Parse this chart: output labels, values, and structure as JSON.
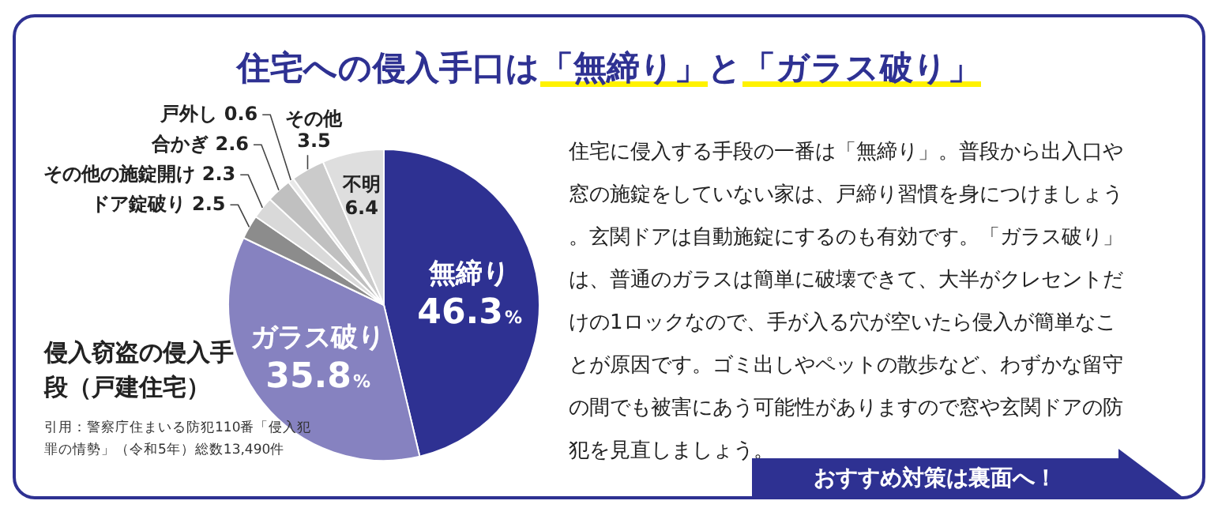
{
  "chart_data": {
    "type": "pie",
    "title": "住宅への侵入手口は「無締り」と「ガラス破り」",
    "subtitle": "侵入窃盗の侵入手段（戸建住宅）",
    "categories": [
      "無締り",
      "ガラス破り",
      "ドア錠破り",
      "その他の施錠開け",
      "合かぎ",
      "戸外し",
      "その他",
      "不明"
    ],
    "values": [
      46.3,
      35.8,
      2.5,
      2.3,
      2.6,
      0.6,
      3.5,
      6.4
    ],
    "colors": [
      "#2e3192",
      "#8682c0",
      "#8c8c8c",
      "#d9d9d9",
      "#c0c0c0",
      "#e8e8e8",
      "#cbcbcb",
      "#dedede"
    ],
    "value_labels": [
      "46.3%",
      "35.8%",
      "2.5",
      "2.3",
      "2.6",
      "0.6",
      "3.5",
      "6.4"
    ],
    "annotations": [
      "引用：警察庁住まいる防犯110番「侵入犯罪の情勢」（令和5年）総数13,490件",
      "住宅に侵入する手段の一番は「無締り」。普段から出入口や窓の施錠をしていない家は、戸締り習慣を身につけましょう。玄関ドアは自動施錠にするのも有効です。「ガラス破り」は、普通のガラスは簡単に破壊できて、大半がクレセントだけの1ロックなので、手が入る穴が空いたら侵入が簡単なことが原因です。ゴミ出しやペットの散歩など、わずかな留守の間でも被害にあう可能性がありますので窓や玄関ドアの防犯を見直しましょう。",
      "おすすめ対策は裏面へ！"
    ]
  }
}
